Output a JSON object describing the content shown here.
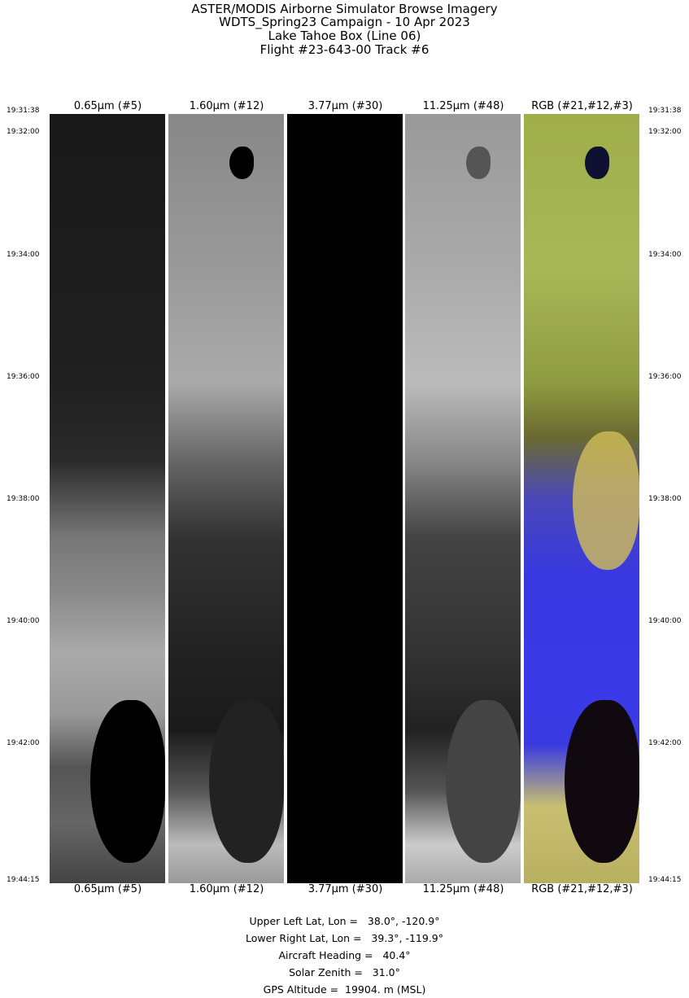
{
  "header": {
    "lines": [
      "ASTER/MODIS Airborne Simulator Browse Imagery",
      "WDTS_Spring23 Campaign - 10 Apr 2023",
      "Lake Tahoe Box (Line 06)",
      "Flight #23-643-00 Track #6"
    ]
  },
  "bands": [
    "0.65µm (#5)",
    "1.60µm (#12)",
    "3.77µm (#30)",
    "11.25µm (#48)",
    "RGB (#21,#12,#3)"
  ],
  "times": [
    "19:31:38",
    "19:32:00",
    "19:34:00",
    "19:36:00",
    "19:38:00",
    "19:40:00",
    "19:42:00",
    "19:44:15"
  ],
  "info": [
    "Upper Left Lat, Lon =   38.0°, -120.9°",
    "Lower Right Lat, Lon =   39.3°, -119.9°",
    "Aircraft Heading =   40.4°",
    "Solar Zenith =   31.0°",
    "GPS Altitude =  19904. m (MSL)"
  ]
}
